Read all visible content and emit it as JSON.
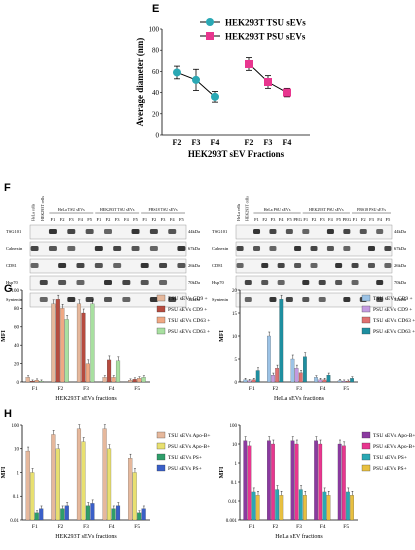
{
  "panels": {
    "E": "E",
    "F": "F",
    "G": "G",
    "H": "H"
  },
  "chart_data": [
    {
      "panel": "E",
      "type": "line",
      "ylabel": "Average diameter (nm)",
      "xlabel": "HEK293T sEV Fractions",
      "ylim": [
        0,
        100
      ],
      "yticks": [
        0,
        20,
        40,
        60,
        80,
        100
      ],
      "series": [
        {
          "name": "HEK293T TSU sEVs",
          "color": "#2aa8b4",
          "marker": "circle",
          "x": [
            "F2",
            "F3",
            "F4"
          ],
          "values": [
            59,
            52,
            36
          ],
          "err": [
            6,
            10,
            5
          ]
        },
        {
          "name": "HEK293T PSU sEVs",
          "color": "#e8368f",
          "marker": "square",
          "x": [
            "F2",
            "F3",
            "F4"
          ],
          "values": [
            67,
            50,
            40
          ],
          "err": [
            6,
            6,
            4
          ]
        }
      ],
      "legend": "top-right"
    },
    {
      "panel": "G-left",
      "type": "bar",
      "ylabel": "MFI",
      "xlabel": "HEK293T sEVs fractions",
      "ylim": [
        0,
        100
      ],
      "yticks": [
        0,
        20,
        40,
        60,
        80,
        100
      ],
      "categories": [
        "F1",
        "F2",
        "F3",
        "F4",
        "F5"
      ],
      "series": [
        {
          "name": "TSU sEVs CD9 +",
          "color": "#e6b89c",
          "values": [
            5,
            85,
            85,
            5,
            2
          ]
        },
        {
          "name": "PSU sEVs CD9 +",
          "color": "#b64b3f",
          "values": [
            1,
            90,
            75,
            24,
            3
          ]
        },
        {
          "name": "TSU sEVs CD63 +",
          "color": "#f0a883",
          "values": [
            2,
            80,
            20,
            5,
            4
          ]
        },
        {
          "name": "PSU sEVs CD63 +",
          "color": "#a8e0a0",
          "values": [
            1,
            68,
            85,
            23,
            5
          ]
        }
      ],
      "legend": "right"
    },
    {
      "panel": "G-right",
      "type": "bar",
      "ylabel": "MFI",
      "xlabel": "HeLa sEVs fractions",
      "ylim": [
        0,
        20
      ],
      "yticks": [
        0,
        5,
        10,
        15,
        20
      ],
      "categories": [
        "F1",
        "F2",
        "F3",
        "F4",
        "F5"
      ],
      "series": [
        {
          "name": "TSU sEVs CD9 +",
          "color": "#9cc3e6",
          "values": [
            0.5,
            10,
            5,
            1,
            0.3
          ]
        },
        {
          "name": "PSU sEVs CD9 +",
          "color": "#c39ae0",
          "values": [
            0.3,
            1.5,
            3,
            0.5,
            0.2
          ]
        },
        {
          "name": "TSU sEVs CD63 +",
          "color": "#e07070",
          "values": [
            0.5,
            3,
            2,
            0.5,
            0.2
          ]
        },
        {
          "name": "PSU sEVs CD63 +",
          "color": "#1e8fa0",
          "values": [
            2.5,
            18,
            5.5,
            1.5,
            0.8
          ]
        }
      ],
      "legend": "right"
    },
    {
      "panel": "H-left",
      "type": "bar",
      "scale": "log",
      "ylabel": "MFI",
      "xlabel": "HEK293T sEVs fractions",
      "ylim": [
        0.01,
        100
      ],
      "yticks": [
        "0.01",
        "0.1",
        "1",
        "10",
        "100"
      ],
      "categories": [
        "F1",
        "F2",
        "F3",
        "F4",
        "F5"
      ],
      "series": [
        {
          "name": "TSU sEVs Apo-B+",
          "color": "#e6b89c",
          "values": [
            8,
            40,
            70,
            70,
            4
          ]
        },
        {
          "name": "PSU sEVs Apo-B+",
          "color": "#e8e070",
          "values": [
            1,
            10,
            20,
            10,
            1
          ]
        },
        {
          "name": "TSU sEVs PS+",
          "color": "#2e9e6a",
          "values": [
            0.02,
            0.03,
            0.04,
            0.03,
            0.02
          ]
        },
        {
          "name": "PSU sEVs PS+",
          "color": "#3a5fc8",
          "values": [
            0.03,
            0.04,
            0.05,
            0.04,
            0.03
          ]
        }
      ],
      "legend": "right"
    },
    {
      "panel": "H-right",
      "type": "bar",
      "scale": "log",
      "ylabel": "MFI",
      "xlabel": "HeLa sEV fractions",
      "ylim": [
        0.001,
        100
      ],
      "yticks": [
        "0.001",
        "0.01",
        "0.1",
        "1",
        "10",
        "100"
      ],
      "categories": [
        "F1",
        "F2",
        "F3",
        "F4",
        "F5"
      ],
      "series": [
        {
          "name": "TSU sEVs Apo-B+",
          "color": "#8b3aa0",
          "values": [
            15,
            15,
            15,
            15,
            10
          ]
        },
        {
          "name": "PSU sEVs Apo-B+",
          "color": "#e8368f",
          "values": [
            8,
            10,
            10,
            10,
            8
          ]
        },
        {
          "name": "TSU sEVs PS+",
          "color": "#2aa8b4",
          "values": [
            0.03,
            0.04,
            0.04,
            0.03,
            0.03
          ]
        },
        {
          "name": "PSU sEVs PS+",
          "color": "#e8c040",
          "values": [
            0.02,
            0.02,
            0.02,
            0.02,
            0.02
          ]
        }
      ],
      "legend": "right"
    }
  ],
  "blots": {
    "left": {
      "col_headers": [
        "HeLa cells",
        "HEK293T cells"
      ],
      "groups": [
        {
          "label": "HeLa TSU sEVs",
          "fractions": [
            "F1",
            "F2",
            "F3",
            "F4",
            "F5"
          ]
        },
        {
          "label": "HEK293T TSU sEVs",
          "fractions": [
            "F1",
            "F2",
            "F3",
            "F4",
            "F5"
          ]
        },
        {
          "label": "FBS18 TSU sEVs",
          "fractions": [
            "F1",
            "F2",
            "F3",
            "F4",
            "F5"
          ]
        }
      ],
      "rows": [
        "TSG101",
        "Calnexin",
        "CD81",
        "Hsp70",
        "Syntenin"
      ],
      "sizes": [
        "44kDa",
        "67kDa",
        "26kDa",
        "70kDa",
        "32kDa"
      ]
    },
    "right": {
      "col_headers": [
        "HeLa cells",
        "HEK293T cells"
      ],
      "groups": [
        {
          "label": "HeLa PSU sEVs",
          "fractions": [
            "F1",
            "F2",
            "F3",
            "F4",
            "F5",
            "PEG"
          ]
        },
        {
          "label": "HEK293T PSU sEVs",
          "fractions": [
            "F1",
            "F2",
            "F3",
            "F4",
            "F5",
            "PEG"
          ]
        },
        {
          "label": "FBS18 PSU sEVs",
          "fractions": [
            "F1",
            "F2",
            "F3",
            "F4",
            "F5"
          ]
        }
      ],
      "rows": [
        "TSG101",
        "Calnexin",
        "CD81",
        "Hsp70",
        "Syntenin"
      ],
      "sizes": [
        "44kDa",
        "67kDa",
        "26kDa",
        "70kDa",
        "32kDa"
      ]
    }
  }
}
